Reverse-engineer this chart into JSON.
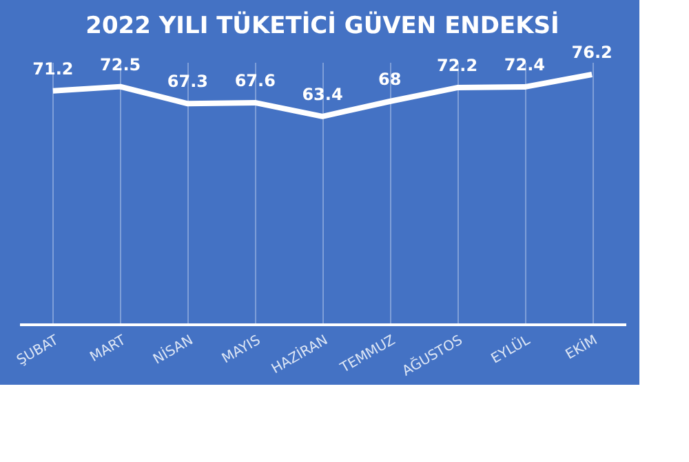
{
  "chart_data": {
    "type": "line",
    "title": "2022 YILI TÜKETİCİ GÜVEN ENDEKSİ",
    "categories": [
      "ŞUBAT",
      "MART",
      "NİSAN",
      "MAYIS",
      "HAZİRAN",
      "TEMMUZ",
      "AĞUSTOS",
      "EYLÜL",
      "EKİM"
    ],
    "series": [
      {
        "color": "#ffffff",
        "values": [
          71.2,
          72.5,
          67.3,
          67.6,
          63.4,
          68,
          72.2,
          72.4,
          76.2
        ]
      }
    ],
    "data_labels": true,
    "grid": "x",
    "marker": "none",
    "line_style": "solid"
  }
}
